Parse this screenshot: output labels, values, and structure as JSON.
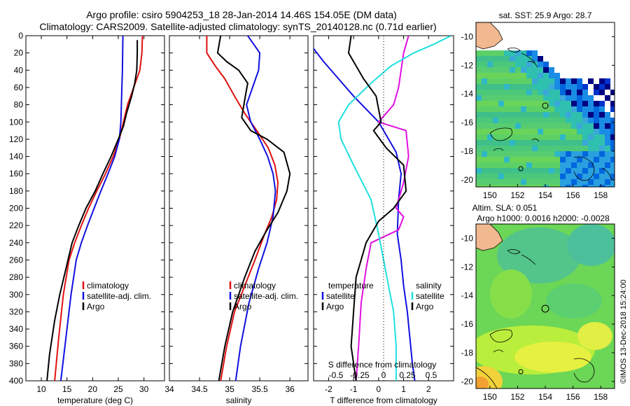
{
  "titles": {
    "line1": "Argo profile: csiro 5904253_18 28-Jan-2014 14.46S 154.05E (DM data)",
    "line2": "Climatology: CARS2009. Satellite-adjusted climatology: synTS_20140128.nc (0.71d earlier)"
  },
  "colors": {
    "climatology": "#e01010",
    "satellite": "#1010e0",
    "argo": "#000000",
    "salinity_diff": "#e010e0",
    "temp_diff": "#20e0e0"
  },
  "chart_data": [
    {
      "type": "line",
      "id": "temperature",
      "xlabel": "temperature (deg C)",
      "ylabel": "depth",
      "xlim": [
        7,
        34
      ],
      "ylim": [
        0,
        400
      ],
      "xticks": [
        10,
        15,
        20,
        25,
        30
      ],
      "yticks": [
        0,
        20,
        40,
        60,
        80,
        100,
        120,
        140,
        160,
        180,
        200,
        220,
        240,
        260,
        280,
        300,
        320,
        340,
        360,
        380,
        400
      ],
      "legend": [
        "climatology",
        "satellite-adj. clim.",
        "Argo"
      ],
      "series": [
        {
          "name": "climatology",
          "color": "#e01010",
          "x": [
            29.7,
            29.6,
            29.2,
            28.0,
            26.8,
            26.0,
            25.2,
            24.0,
            22.5,
            20.8,
            19.2,
            17.8,
            16.5,
            15.4,
            14.3,
            13.4,
            12.6
          ],
          "depth": [
            0,
            20,
            40,
            60,
            80,
            100,
            120,
            140,
            160,
            180,
            200,
            220,
            240,
            260,
            300,
            350,
            400
          ]
        },
        {
          "name": "satellite-adj. clim.",
          "color": "#1010e0",
          "x": [
            25.9,
            25.85,
            25.8,
            25.7,
            25.6,
            25.5,
            25.2,
            24.3,
            23.0,
            21.6,
            20.3,
            19.0,
            17.8,
            16.8,
            15.8,
            14.8,
            13.8
          ],
          "depth": [
            0,
            20,
            40,
            60,
            80,
            100,
            120,
            140,
            160,
            180,
            200,
            220,
            240,
            260,
            300,
            350,
            400
          ]
        },
        {
          "name": "Argo",
          "color": "#000000",
          "x": [
            28.7,
            28.7,
            28.6,
            28.2,
            27.6,
            26.6,
            26.0,
            25.0,
            23.6,
            22.0,
            20.5,
            18.7,
            17.3,
            16.0,
            14.8,
            13.6,
            12.6,
            11.6,
            11.1
          ],
          "depth": [
            5,
            20,
            40,
            55,
            70,
            90,
            105,
            120,
            140,
            160,
            180,
            200,
            220,
            240,
            270,
            300,
            330,
            370,
            400
          ]
        }
      ]
    },
    {
      "type": "line",
      "id": "salinity",
      "xlabel": "salinity",
      "xlim": [
        34,
        36.3
      ],
      "ylim": [
        0,
        400
      ],
      "xticks": [
        34,
        34.5,
        35,
        35.5,
        36
      ],
      "legend": [
        "climatology",
        "satellite-adj. clim.",
        "Argo"
      ],
      "series": [
        {
          "name": "climatology",
          "color": "#e01010",
          "x": [
            34.62,
            34.62,
            34.76,
            34.92,
            35.08,
            35.25,
            35.45,
            35.64,
            35.75,
            35.8,
            35.78,
            35.7,
            35.58,
            35.42,
            35.25,
            35.08,
            34.95,
            34.85
          ],
          "depth": [
            0,
            20,
            35,
            50,
            70,
            90,
            110,
            130,
            150,
            170,
            190,
            210,
            230,
            260,
            290,
            320,
            360,
            400
          ]
        },
        {
          "name": "satellite-adj. clim.",
          "color": "#1010e0",
          "x": [
            35.3,
            35.4,
            35.5,
            35.48,
            35.38,
            35.28,
            35.35,
            35.5,
            35.63,
            35.72,
            35.76,
            35.72,
            35.62,
            35.48,
            35.32,
            35.18,
            35.1
          ],
          "depth": [
            0,
            10,
            20,
            40,
            60,
            80,
            100,
            120,
            140,
            160,
            180,
            210,
            240,
            270,
            310,
            360,
            400
          ]
        },
        {
          "name": "Argo",
          "color": "#000000",
          "x": [
            34.85,
            34.8,
            34.95,
            35.15,
            35.3,
            35.26,
            35.2,
            35.35,
            35.62,
            35.9,
            36.0,
            35.95,
            35.8,
            35.62,
            35.42,
            35.25,
            35.05,
            34.92,
            34.82
          ],
          "depth": [
            0,
            20,
            30,
            40,
            55,
            70,
            95,
            110,
            120,
            135,
            160,
            180,
            205,
            225,
            250,
            280,
            320,
            360,
            400
          ]
        }
      ]
    },
    {
      "type": "line",
      "id": "difference",
      "xlabel": "T difference from climatology",
      "top_xlabel": "S difference from climatology",
      "xlim": [
        -2.6,
        3.0
      ],
      "ylim": [
        0,
        400
      ],
      "xticks": [
        -2,
        -1,
        0,
        1,
        2
      ],
      "top_xticks": [
        "-0.5",
        "-0.25",
        "0",
        "0.25",
        "0.5"
      ],
      "legend_temperature": {
        "header": "temperature",
        "items": [
          "satellite",
          "Argo"
        ]
      },
      "legend_salinity": {
        "header": "salinity",
        "items": [
          "satellite",
          "Argo"
        ]
      },
      "series": [
        {
          "name": "S satellite",
          "color": "#1010e0",
          "x": [
            -2.6,
            -2.2,
            -1.6,
            -1.0,
            -0.5,
            0.0,
            0.3,
            0.7,
            0.9,
            0.8,
            0.75,
            0.9,
            1.0,
            1.15,
            1.25,
            1.35,
            1.45
          ],
          "depth": [
            15,
            30,
            50,
            70,
            85,
            100,
            115,
            135,
            160,
            190,
            230,
            260,
            290,
            320,
            350,
            380,
            400
          ]
        },
        {
          "name": "S Argo",
          "color": "#e010e0",
          "x": [
            1.2,
            1.0,
            0.9,
            0.8,
            0.6,
            0.0,
            1.1,
            1.2,
            1.0,
            0.7,
            1.0,
            0.8,
            -0.3,
            -0.5,
            -0.7,
            -0.8,
            -0.9
          ],
          "depth": [
            0,
            20,
            40,
            60,
            80,
            100,
            110,
            140,
            170,
            200,
            210,
            225,
            240,
            270,
            310,
            360,
            400
          ]
        },
        {
          "name": "T satellite",
          "color": "#20e0e0",
          "x": [
            2.9,
            2.2,
            1.4,
            0.5,
            -0.3,
            -1.2,
            -1.6,
            -1.5,
            -1.0,
            -0.3,
            0.0,
            0.2,
            0.4,
            0.6,
            0.7,
            0.7
          ],
          "depth": [
            0,
            10,
            20,
            35,
            55,
            80,
            100,
            120,
            150,
            190,
            230,
            260,
            290,
            320,
            360,
            400
          ]
        },
        {
          "name": "T Argo",
          "color": "#000000",
          "x": [
            -1.1,
            -1.2,
            -0.6,
            -0.1,
            0.1,
            -0.2,
            0.3,
            1.0,
            1.1,
            0.6,
            0.0,
            -0.5,
            -0.9,
            -1.0,
            -1.1,
            -0.9
          ],
          "depth": [
            0,
            20,
            50,
            70,
            100,
            110,
            130,
            150,
            180,
            200,
            215,
            240,
            280,
            320,
            360,
            400
          ]
        }
      ]
    },
    {
      "type": "heatmap",
      "id": "sst_map",
      "title": "sat. SST: 25.9 Argo: 28.7",
      "xlim": [
        149,
        159
      ],
      "ylim": [
        -20.5,
        -9
      ],
      "xticks": [
        150,
        152,
        154,
        156,
        158
      ],
      "yticks": [
        -10,
        -12,
        -14,
        -16,
        -18,
        -20
      ],
      "argo_position": {
        "lon": 154.05,
        "lat": -14.46
      }
    },
    {
      "type": "heatmap",
      "id": "sla_map",
      "title": "Altim. SLA: 0.051",
      "subtitle": "Argo h1000: 0.0016 h2000: -0.0028",
      "xlim": [
        149,
        159
      ],
      "ylim": [
        -20.5,
        -9
      ],
      "xticks": [
        150,
        152,
        154,
        156,
        158
      ],
      "yticks": [
        -10,
        -12,
        -14,
        -16,
        -18,
        -20
      ],
      "argo_position": {
        "lon": 154.05,
        "lat": -14.46
      }
    }
  ],
  "signature": "©IMOS 13-Dec-2018 15:24:00"
}
